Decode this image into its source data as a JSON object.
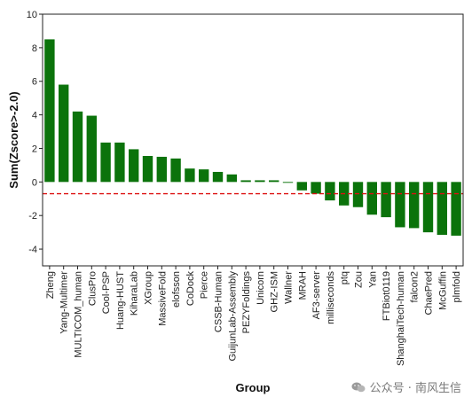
{
  "chart_data": {
    "type": "bar",
    "xlabel": "Group",
    "ylabel": "Sum(Zscore>-2.0)",
    "ylim": [
      -5,
      10
    ],
    "yticks": [
      -4,
      -2,
      0,
      2,
      4,
      6,
      8,
      10
    ],
    "grid": false,
    "bar_color": "#0b730b",
    "reference_line": {
      "y": -0.7,
      "color": "#dd1111",
      "style": "dashed"
    },
    "categories": [
      "Zheng",
      "Yang-Multimer",
      "MULTICOM_human",
      "ClusPro",
      "Cool-PSP",
      "Huang-HUST",
      "KiharaLab",
      "XGroup",
      "MassiveFold",
      "elofsson",
      "CoDock",
      "Pierce",
      "CSSB-Human",
      "GuijunLab-Assembly",
      "PEZYFoldings",
      "Unicorn",
      "GHZ-ISM",
      "Wallner",
      "MRAH",
      "AF3-server",
      "milliseconds",
      "ptq",
      "Zou",
      "Yan",
      "FTBiot0119",
      "ShanghaiTech-human",
      "falcon2",
      "ChaePred",
      "McGuffin",
      "plmfold"
    ],
    "values": [
      8.5,
      5.8,
      4.2,
      3.95,
      2.35,
      2.35,
      1.95,
      1.55,
      1.5,
      1.4,
      0.8,
      0.75,
      0.6,
      0.45,
      0.1,
      0.1,
      0.1,
      -0.05,
      -0.5,
      -0.7,
      -1.1,
      -1.4,
      -1.5,
      -1.95,
      -2.1,
      -2.7,
      -2.75,
      -3.0,
      -3.15,
      -3.2
    ]
  },
  "watermark": {
    "text": "公众号 · 南风生信",
    "icon": "wechat-icon"
  }
}
